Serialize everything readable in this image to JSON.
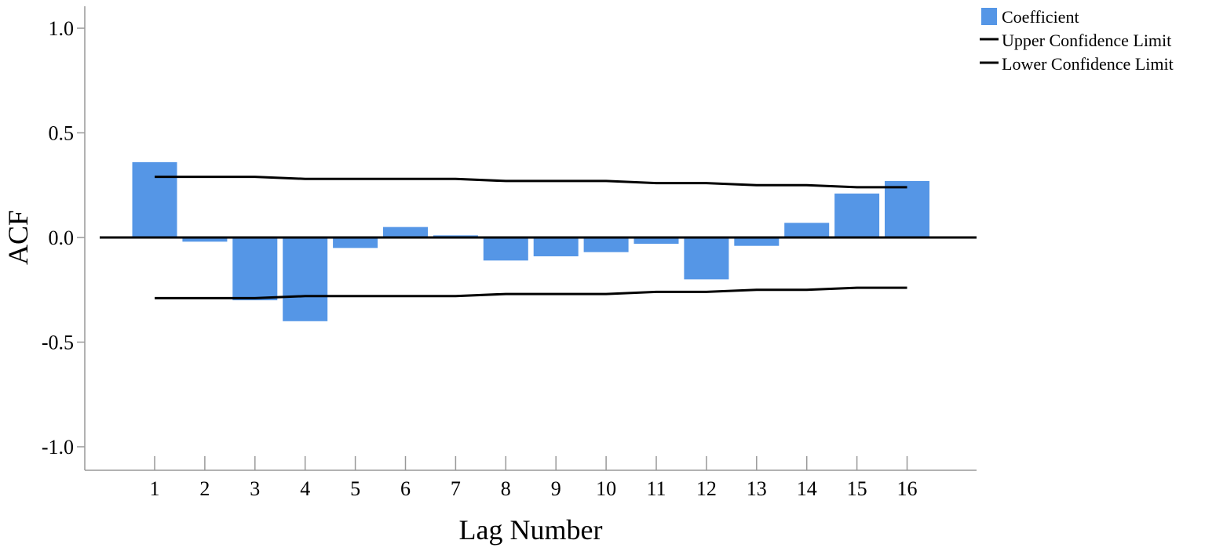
{
  "chart_data": {
    "type": "bar",
    "title": "",
    "xlabel": "Lag Number",
    "ylabel": "ACF",
    "ylim": [
      -1.1,
      1.1
    ],
    "yticks": [
      1.0,
      0.5,
      0.0,
      -0.5,
      -1.0
    ],
    "ytick_labels": [
      "1.0",
      "0.5",
      "0.0",
      "-0.5",
      "-1.0"
    ],
    "categories": [
      "1",
      "2",
      "3",
      "4",
      "5",
      "6",
      "7",
      "8",
      "9",
      "10",
      "11",
      "12",
      "13",
      "14",
      "15",
      "16"
    ],
    "series": [
      {
        "name": "Coefficient",
        "kind": "bar",
        "color": "#5596E6",
        "values": [
          0.36,
          -0.02,
          -0.3,
          -0.4,
          -0.05,
          0.05,
          0.01,
          -0.11,
          -0.09,
          -0.07,
          -0.03,
          -0.2,
          -0.04,
          0.07,
          0.21,
          0.27
        ]
      },
      {
        "name": "Upper Confidence Limit",
        "kind": "line",
        "color": "#000000",
        "values": [
          0.29,
          0.29,
          0.29,
          0.28,
          0.28,
          0.28,
          0.28,
          0.27,
          0.27,
          0.27,
          0.26,
          0.26,
          0.25,
          0.25,
          0.24,
          0.24
        ]
      },
      {
        "name": "Lower Confidence Limit",
        "kind": "line",
        "color": "#000000",
        "values": [
          -0.29,
          -0.29,
          -0.29,
          -0.28,
          -0.28,
          -0.28,
          -0.28,
          -0.27,
          -0.27,
          -0.27,
          -0.26,
          -0.26,
          -0.25,
          -0.25,
          -0.24,
          -0.24
        ]
      }
    ],
    "legend": {
      "position": "top-right",
      "items": [
        {
          "label": "Coefficient",
          "symbol": "box",
          "color": "#5596E6"
        },
        {
          "label": "Upper Confidence Limit",
          "symbol": "line",
          "color": "#000000"
        },
        {
          "label": "Lower Confidence Limit",
          "symbol": "line",
          "color": "#000000"
        }
      ]
    },
    "grid": false,
    "zero_line": true
  }
}
